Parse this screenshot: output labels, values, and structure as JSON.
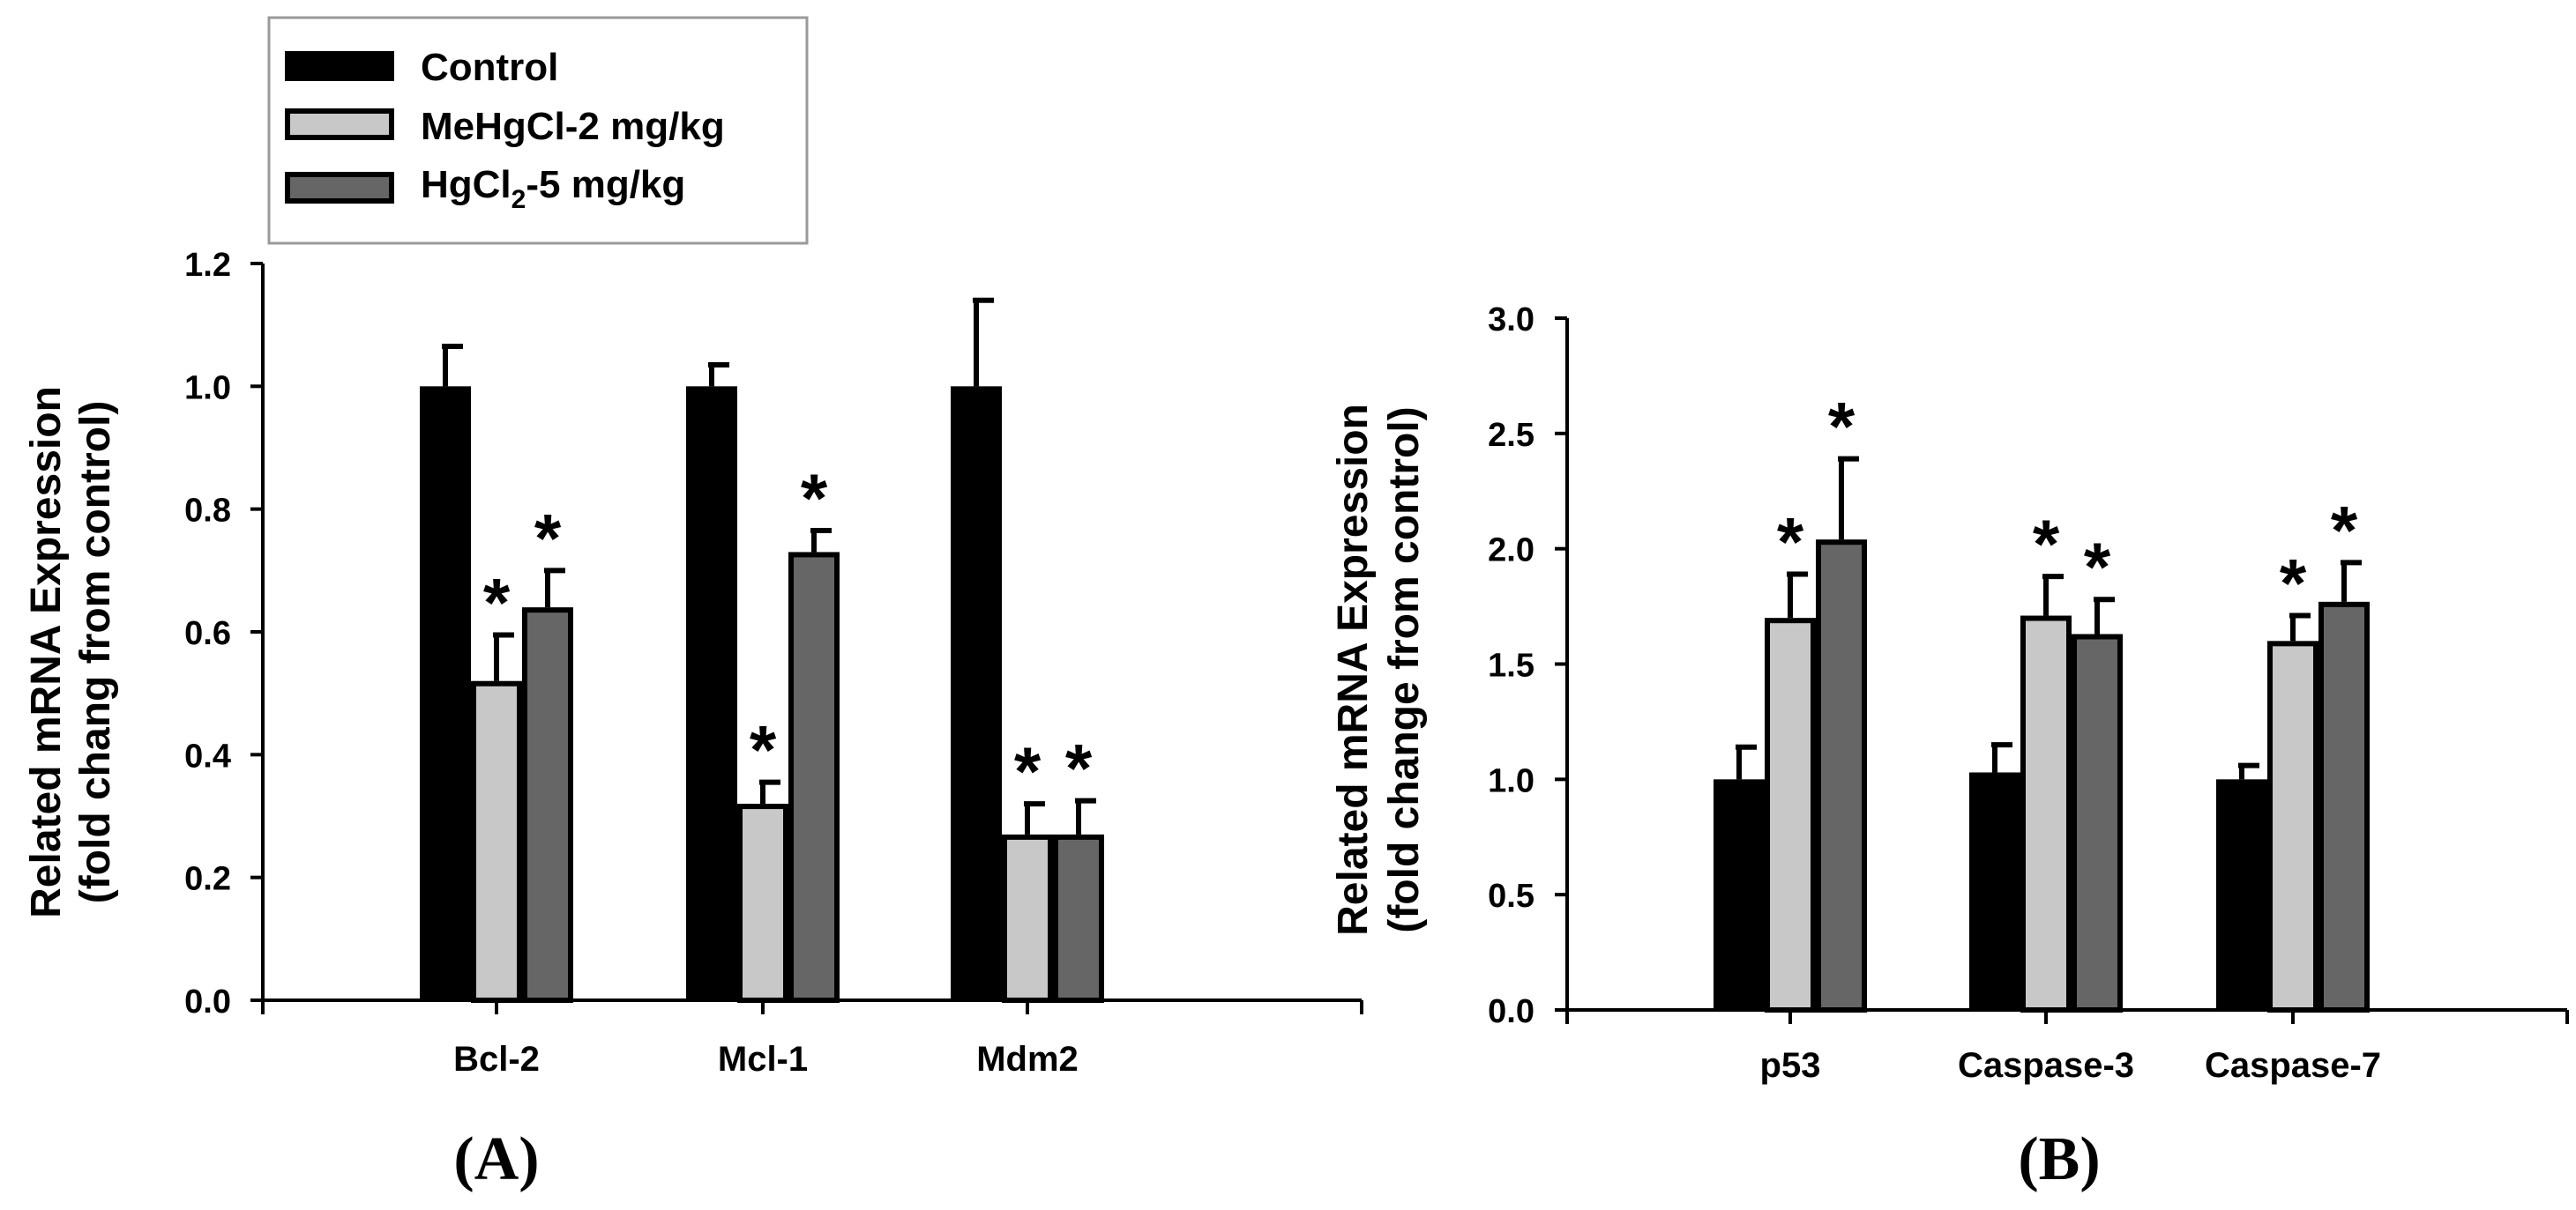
{
  "legend": {
    "items": [
      {
        "label": "Control",
        "color": "#000000"
      },
      {
        "label": "MeHgCl-2 mg/kg",
        "color": "#c8c8c8"
      },
      {
        "label": "HgCl",
        "sub": "2",
        "suffix": "-5 mg/kg",
        "color": "#666666"
      }
    ]
  },
  "chart_data": [
    {
      "type": "bar",
      "panel_label": "A",
      "ylabel": "Related mRNA Expression",
      "ylabel2": "(fold chang from control)",
      "categories": [
        "Bcl-2",
        "Mcl-1",
        "Mdm2"
      ],
      "ylim": [
        0,
        1.2
      ],
      "yticks": [
        "0.0",
        "0.2",
        "0.4",
        "0.6",
        "0.8",
        "1.0",
        "1.2"
      ],
      "series": [
        {
          "name": "Control",
          "values": [
            1.0,
            1.0,
            1.0
          ],
          "errors": [
            0.065,
            0.035,
            0.14
          ],
          "significant": [
            false,
            false,
            false
          ]
        },
        {
          "name": "MeHgCl-2 mg/kg",
          "values": [
            0.52,
            0.32,
            0.27
          ],
          "errors": [
            0.075,
            0.035,
            0.05
          ],
          "significant": [
            true,
            true,
            true
          ]
        },
        {
          "name": "HgCl2-5 mg/kg",
          "values": [
            0.64,
            0.73,
            0.27
          ],
          "errors": [
            0.06,
            0.035,
            0.055
          ],
          "significant": [
            true,
            true,
            true
          ]
        }
      ],
      "significance_marker": "*"
    },
    {
      "type": "bar",
      "panel_label": "B",
      "ylabel": "Related mRNA Expression",
      "ylabel2": "(fold change from control)",
      "categories": [
        "p53",
        "Caspase-3",
        "Caspase-7"
      ],
      "ylim": [
        0,
        3.0
      ],
      "yticks": [
        "0.0",
        "0.5",
        "1.0",
        "1.5",
        "2.0",
        "2.5",
        "3.0"
      ],
      "series": [
        {
          "name": "Control",
          "values": [
            1.0,
            1.03,
            1.0
          ],
          "errors": [
            0.14,
            0.12,
            0.06
          ],
          "significant": [
            false,
            false,
            false
          ]
        },
        {
          "name": "MeHgCl-2 mg/kg",
          "values": [
            1.7,
            1.71,
            1.6
          ],
          "errors": [
            0.19,
            0.17,
            0.11
          ],
          "significant": [
            true,
            true,
            true
          ]
        },
        {
          "name": "HgCl2-5 mg/kg",
          "values": [
            2.04,
            1.63,
            1.77
          ],
          "errors": [
            0.35,
            0.15,
            0.17
          ],
          "significant": [
            true,
            true,
            true
          ]
        }
      ],
      "significance_marker": "*"
    }
  ]
}
